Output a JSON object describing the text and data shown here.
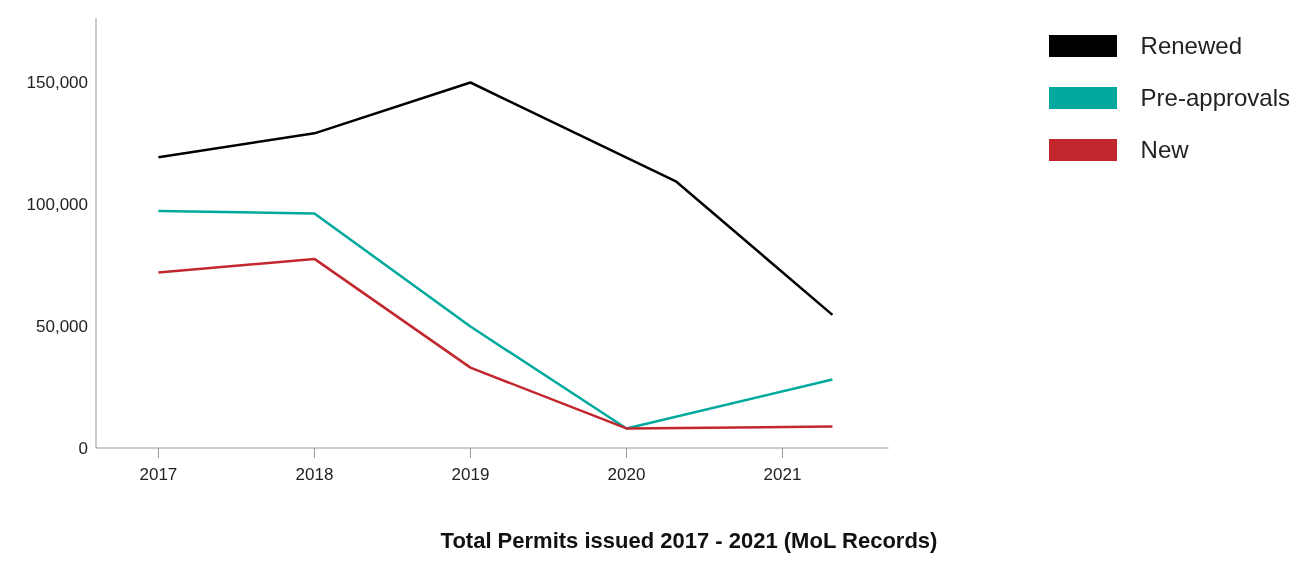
{
  "chart_data": {
    "type": "line",
    "title": "Total Permits issued 2017 - 2021 (MoL Records)",
    "xlim": [
      2016.6,
      2021.68
    ],
    "xticks": [
      2017,
      2018,
      2019,
      2020,
      2021
    ],
    "ylim": [
      0,
      176000
    ],
    "yticks": [
      0,
      {
        "value": 50000,
        "label": "50,000"
      },
      {
        "value": 100000,
        "label": "100,000"
      },
      {
        "value": 150000,
        "label": "150,000"
      }
    ],
    "grid": false,
    "legend": "top right",
    "marker": "none",
    "line_style": "solid",
    "series": [
      {
        "name": "Renewed",
        "color": "#000000",
        "x": [
          2017,
          2018,
          2019,
          2020.32,
          2021.32
        ],
        "values": [
          119000,
          128800,
          149600,
          109000,
          54500
        ]
      },
      {
        "name": "Pre-approvals",
        "color": "#00a99d",
        "x": [
          2017,
          2018,
          2019,
          2020,
          2021.32
        ],
        "values": [
          97000,
          96000,
          49700,
          8000,
          28000
        ]
      },
      {
        "name": "New",
        "color": "#c1272d",
        "x": [
          2017,
          2018,
          2019,
          2020,
          2021.32
        ],
        "values": [
          71800,
          77400,
          32900,
          8000,
          8800
        ]
      }
    ]
  }
}
